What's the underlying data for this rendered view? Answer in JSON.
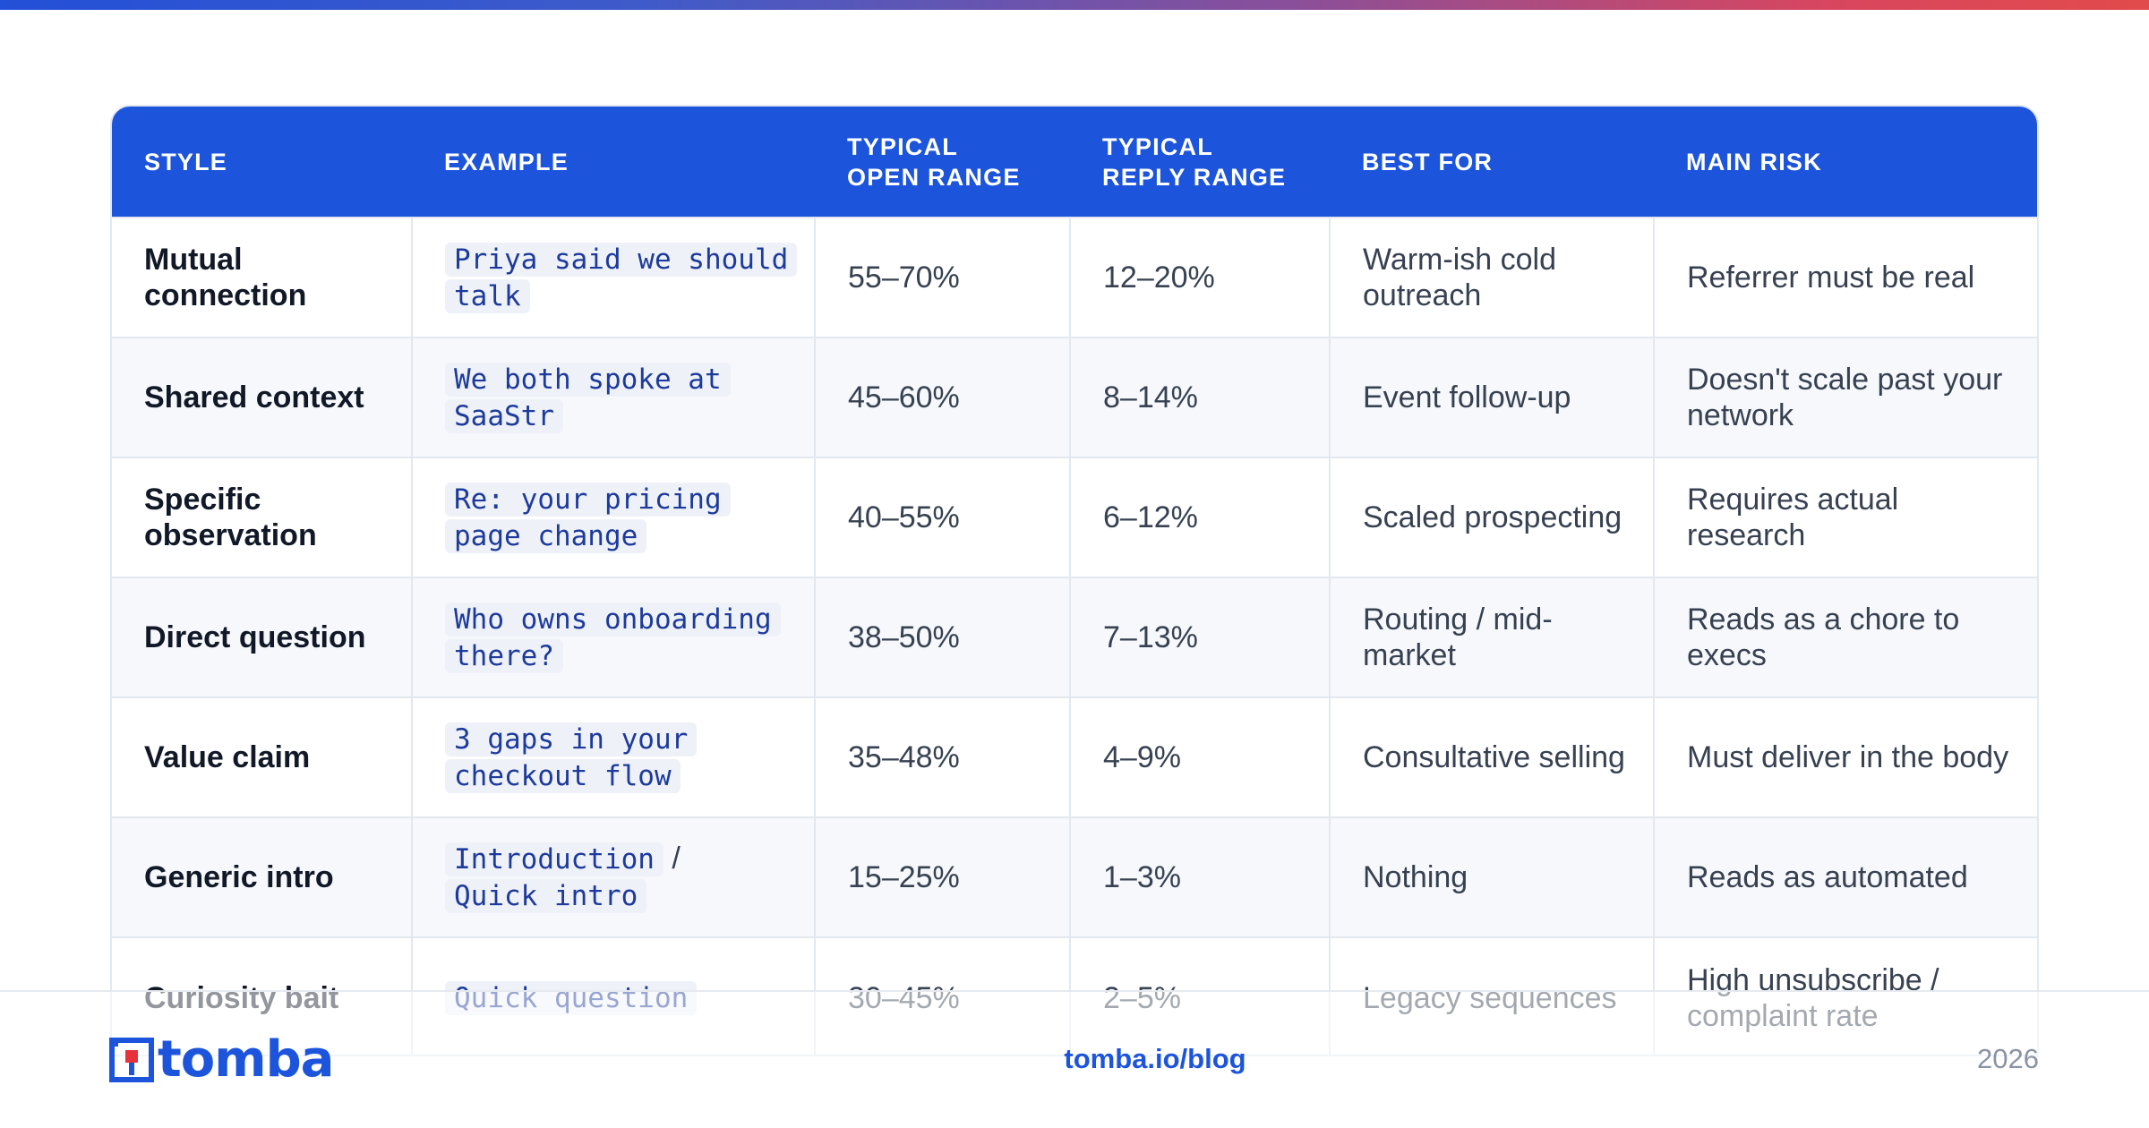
{
  "header": {
    "style": "STYLE",
    "example": "EXAMPLE",
    "open_1": "TYPICAL",
    "open_2": "OPEN RANGE",
    "reply_1": "TYPICAL",
    "reply_2": "REPLY RANGE",
    "best_for": "BEST FOR",
    "main_risk": "MAIN RISK"
  },
  "rows": [
    {
      "style": "Mutual connection",
      "example": [
        "Priya said we should talk"
      ],
      "open": "55–70%",
      "reply": "12–20%",
      "best_for": "Warm-ish cold outreach",
      "risk": "Referrer must be real"
    },
    {
      "style": "Shared context",
      "example": [
        "We both spoke at SaaStr"
      ],
      "open": "45–60%",
      "reply": "8–14%",
      "best_for": "Event follow-up",
      "risk": "Doesn't scale past your network"
    },
    {
      "style": "Specific observation",
      "example": [
        "Re: your pricing page change"
      ],
      "open": "40–55%",
      "reply": "6–12%",
      "best_for": "Scaled prospecting",
      "risk": "Requires actual research"
    },
    {
      "style": "Direct question",
      "example": [
        "Who owns onboarding there?"
      ],
      "open": "38–50%",
      "reply": "7–13%",
      "best_for": "Routing / mid-market",
      "risk": "Reads as a chore to execs"
    },
    {
      "style": "Value claim",
      "example": [
        "3 gaps in your checkout flow"
      ],
      "open": "35–48%",
      "reply": "4–9%",
      "best_for": "Consultative selling",
      "risk": "Must deliver in the body"
    },
    {
      "style": "Generic intro",
      "example": [
        "Introduction",
        "Quick intro"
      ],
      "example_sep": "/",
      "open": "15–25%",
      "reply": "1–3%",
      "best_for": "Nothing",
      "risk": "Reads as automated"
    },
    {
      "style": "Curiosity bait",
      "example": [
        "Quick question"
      ],
      "open": "30–45%",
      "reply": "2–5%",
      "best_for": "Legacy sequences",
      "risk": "High unsubscribe / complaint rate"
    }
  ],
  "footer": {
    "logo_text": "tomba",
    "link": "tomba.io/blog",
    "year": "2026"
  },
  "colors": {
    "accent": "#1c54dc",
    "header_bg": "#1c54dc",
    "row_alt": "#f6f8fb",
    "border": "#e3e8ef",
    "logo_red": "#e5323b"
  }
}
